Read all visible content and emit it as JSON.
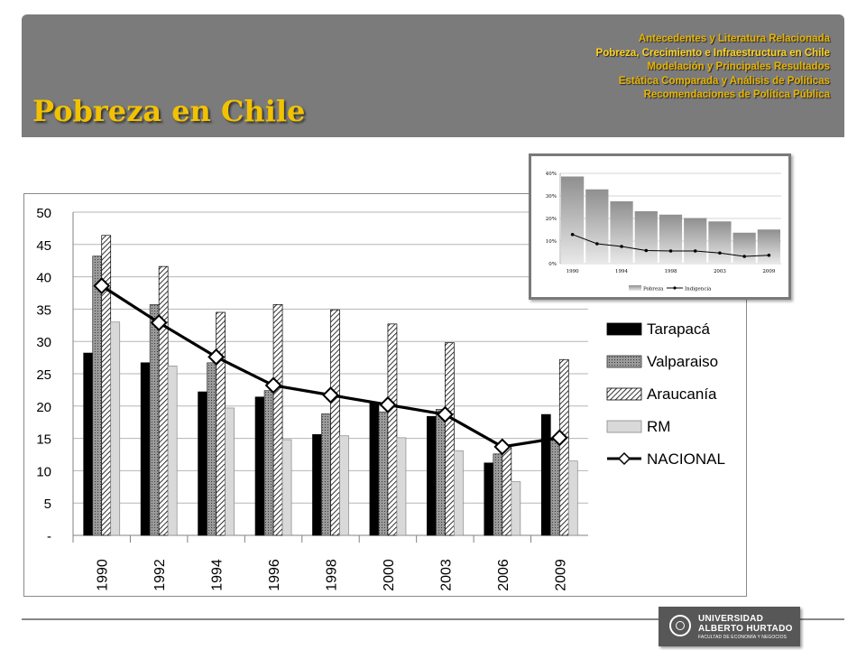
{
  "header": {
    "title": "Pobreza en Chile",
    "nav": [
      "Antecedentes  y Literatura Relacionada",
      "Pobreza, Crecimiento e Infraestructura  en Chile",
      "Modelación y Principales Resultados",
      "Estática Comparada y Análisis de Políticas",
      "Recomendaciones  de Política Pública"
    ],
    "active_index": 1
  },
  "logo": {
    "line1": "UNIVERSIDAD",
    "line2": "ALBERTO HURTADO",
    "line3": "FACULTAD DE ECONOMÍA Y NEGOCIOS"
  },
  "chart_data": [
    {
      "type": "bar",
      "categories": [
        "1990",
        "1992",
        "1994",
        "1996",
        "1998",
        "2000",
        "2003",
        "2006",
        "2009"
      ],
      "series": [
        {
          "name": "Tarapacá",
          "values": [
            28.2,
            26.7,
            22.2,
            21.4,
            15.6,
            20.6,
            18.4,
            11.2,
            18.7
          ],
          "color": "#000000"
        },
        {
          "name": "Valparaiso",
          "values": [
            43.2,
            35.7,
            26.7,
            22.4,
            18.8,
            19.1,
            19.5,
            12.6,
            15.0
          ],
          "color": "#8a8a8a"
        },
        {
          "name": "Araucanía",
          "values": [
            46.4,
            41.6,
            34.5,
            35.7,
            34.9,
            32.7,
            29.8,
            13.7,
            27.2
          ],
          "color": "#ffffff"
        },
        {
          "name": "RM",
          "values": [
            33.0,
            26.2,
            19.7,
            14.8,
            15.4,
            15.1,
            13.1,
            8.3,
            11.5
          ],
          "color": "#d9d9d9"
        }
      ],
      "line_series": {
        "name": "NACIONAL",
        "values": [
          38.6,
          32.9,
          27.6,
          23.2,
          21.7,
          20.2,
          18.7,
          13.7,
          15.1
        ],
        "color": "#000000"
      },
      "yticks": [
        "-",
        "5",
        "10",
        "15",
        "20",
        "25",
        "30",
        "35",
        "40",
        "45",
        "50"
      ],
      "ylim": [
        0,
        50
      ],
      "grid": true,
      "legend": "right"
    },
    {
      "type": "bar",
      "categories": [
        "1990",
        "1992",
        "1994",
        "1996",
        "1998",
        "2000",
        "2003",
        "2006",
        "2009"
      ],
      "xtick_labels": [
        "1990",
        "",
        "1994",
        "",
        "1998",
        "",
        "2003",
        "",
        "2009"
      ],
      "series": [
        {
          "name": "Pobreza",
          "values": [
            38.6,
            32.9,
            27.6,
            23.2,
            21.7,
            20.2,
            18.7,
            13.7,
            15.1
          ]
        }
      ],
      "line_series": {
        "name": "Indigencia",
        "values": [
          12.9,
          8.8,
          7.6,
          5.8,
          5.6,
          5.6,
          4.7,
          3.2,
          3.7
        ]
      },
      "yticks": [
        "0%",
        "10%",
        "20%",
        "30%",
        "40%"
      ],
      "ylim": [
        0,
        40
      ],
      "grid": true,
      "legend": "bottom"
    }
  ]
}
